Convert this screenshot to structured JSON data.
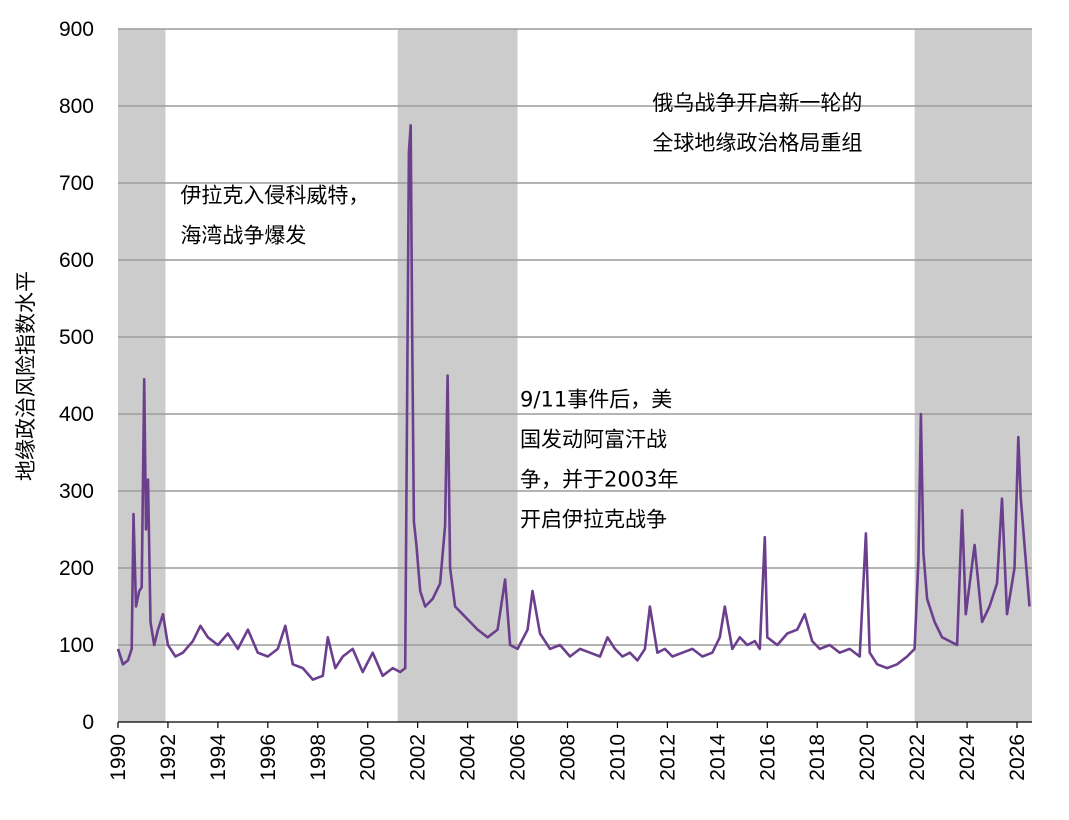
{
  "chart_data": {
    "type": "line",
    "title": "",
    "xlabel": "",
    "ylabel": "地缘政治风险指数水平",
    "xlim": [
      1990,
      2026.6
    ],
    "ylim": [
      0,
      900
    ],
    "yticks": [
      0,
      100,
      200,
      300,
      400,
      500,
      600,
      700,
      800,
      900
    ],
    "xticks": [
      1990,
      1992,
      1994,
      1996,
      1998,
      2000,
      2002,
      2004,
      2006,
      2008,
      2010,
      2012,
      2014,
      2016,
      2018,
      2020,
      2022,
      2024,
      2026
    ],
    "grid": "horizontal",
    "colors": {
      "line": "#6b3f8e",
      "shade": "#cccccc",
      "grid": "#9b9b9b"
    },
    "shaded_periods": [
      [
        1990,
        1991.9
      ],
      [
        2001.2,
        2006
      ],
      [
        2021.9,
        2026.6
      ]
    ],
    "annotations": [
      {
        "lines": [
          "伊拉克入侵科威特，",
          "海湾战争爆发"
        ],
        "x": 1992.5,
        "y": 675
      },
      {
        "lines": [
          "9/11事件后，美",
          "国发动阿富汗战",
          "争，并于2003年",
          "开启伊拉克战争"
        ],
        "x": 2006.1,
        "y": 410
      },
      {
        "lines": [
          "俄乌战争开启新一轮的",
          "全球地缘政治格局重组"
        ],
        "x": 2011.4,
        "y": 795
      }
    ],
    "series": [
      {
        "values": [
          [
            1990.0,
            95
          ],
          [
            1990.2,
            75
          ],
          [
            1990.4,
            80
          ],
          [
            1990.55,
            95
          ],
          [
            1990.62,
            270
          ],
          [
            1990.72,
            150
          ],
          [
            1990.85,
            170
          ],
          [
            1990.95,
            175
          ],
          [
            1991.05,
            445
          ],
          [
            1991.12,
            250
          ],
          [
            1991.2,
            315
          ],
          [
            1991.3,
            130
          ],
          [
            1991.45,
            100
          ],
          [
            1991.6,
            120
          ],
          [
            1991.8,
            140
          ],
          [
            1992.0,
            100
          ],
          [
            1992.3,
            85
          ],
          [
            1992.6,
            90
          ],
          [
            1993.0,
            105
          ],
          [
            1993.3,
            125
          ],
          [
            1993.6,
            110
          ],
          [
            1994.0,
            100
          ],
          [
            1994.4,
            115
          ],
          [
            1994.8,
            95
          ],
          [
            1995.2,
            120
          ],
          [
            1995.6,
            90
          ],
          [
            1996.0,
            85
          ],
          [
            1996.4,
            95
          ],
          [
            1996.7,
            125
          ],
          [
            1997.0,
            75
          ],
          [
            1997.4,
            70
          ],
          [
            1997.8,
            55
          ],
          [
            1998.2,
            60
          ],
          [
            1998.4,
            110
          ],
          [
            1998.7,
            70
          ],
          [
            1999.0,
            85
          ],
          [
            1999.4,
            95
          ],
          [
            1999.8,
            65
          ],
          [
            2000.2,
            90
          ],
          [
            2000.6,
            60
          ],
          [
            2001.0,
            70
          ],
          [
            2001.3,
            65
          ],
          [
            2001.5,
            70
          ],
          [
            2001.65,
            740
          ],
          [
            2001.72,
            775
          ],
          [
            2001.78,
            500
          ],
          [
            2001.85,
            260
          ],
          [
            2001.95,
            230
          ],
          [
            2002.1,
            170
          ],
          [
            2002.3,
            150
          ],
          [
            2002.6,
            160
          ],
          [
            2002.9,
            180
          ],
          [
            2003.1,
            255
          ],
          [
            2003.2,
            450
          ],
          [
            2003.3,
            200
          ],
          [
            2003.5,
            150
          ],
          [
            2003.8,
            140
          ],
          [
            2004.1,
            130
          ],
          [
            2004.4,
            120
          ],
          [
            2004.8,
            110
          ],
          [
            2005.2,
            120
          ],
          [
            2005.5,
            185
          ],
          [
            2005.7,
            100
          ],
          [
            2006.0,
            95
          ],
          [
            2006.4,
            120
          ],
          [
            2006.6,
            170
          ],
          [
            2006.9,
            115
          ],
          [
            2007.3,
            95
          ],
          [
            2007.7,
            100
          ],
          [
            2008.1,
            85
          ],
          [
            2008.5,
            95
          ],
          [
            2008.9,
            90
          ],
          [
            2009.3,
            85
          ],
          [
            2009.6,
            110
          ],
          [
            2009.9,
            95
          ],
          [
            2010.2,
            85
          ],
          [
            2010.5,
            90
          ],
          [
            2010.8,
            80
          ],
          [
            2011.1,
            95
          ],
          [
            2011.3,
            150
          ],
          [
            2011.6,
            90
          ],
          [
            2011.9,
            95
          ],
          [
            2012.2,
            85
          ],
          [
            2012.6,
            90
          ],
          [
            2013.0,
            95
          ],
          [
            2013.4,
            85
          ],
          [
            2013.8,
            90
          ],
          [
            2014.1,
            110
          ],
          [
            2014.3,
            150
          ],
          [
            2014.6,
            95
          ],
          [
            2014.9,
            110
          ],
          [
            2015.2,
            100
          ],
          [
            2015.5,
            105
          ],
          [
            2015.7,
            95
          ],
          [
            2015.9,
            240
          ],
          [
            2016.0,
            110
          ],
          [
            2016.4,
            100
          ],
          [
            2016.8,
            115
          ],
          [
            2017.2,
            120
          ],
          [
            2017.5,
            140
          ],
          [
            2017.8,
            105
          ],
          [
            2018.1,
            95
          ],
          [
            2018.5,
            100
          ],
          [
            2018.9,
            90
          ],
          [
            2019.3,
            95
          ],
          [
            2019.7,
            85
          ],
          [
            2019.95,
            245
          ],
          [
            2020.1,
            90
          ],
          [
            2020.4,
            75
          ],
          [
            2020.8,
            70
          ],
          [
            2021.2,
            75
          ],
          [
            2021.6,
            85
          ],
          [
            2021.9,
            95
          ],
          [
            2022.05,
            210
          ],
          [
            2022.15,
            400
          ],
          [
            2022.25,
            220
          ],
          [
            2022.4,
            160
          ],
          [
            2022.7,
            130
          ],
          [
            2023.0,
            110
          ],
          [
            2023.3,
            105
          ],
          [
            2023.6,
            100
          ],
          [
            2023.8,
            275
          ],
          [
            2023.95,
            140
          ],
          [
            2024.3,
            230
          ],
          [
            2024.6,
            130
          ],
          [
            2024.9,
            150
          ],
          [
            2025.2,
            180
          ],
          [
            2025.4,
            290
          ],
          [
            2025.6,
            140
          ],
          [
            2025.9,
            200
          ],
          [
            2026.05,
            370
          ],
          [
            2026.15,
            290
          ],
          [
            2026.3,
            230
          ],
          [
            2026.5,
            150
          ]
        ]
      }
    ]
  }
}
